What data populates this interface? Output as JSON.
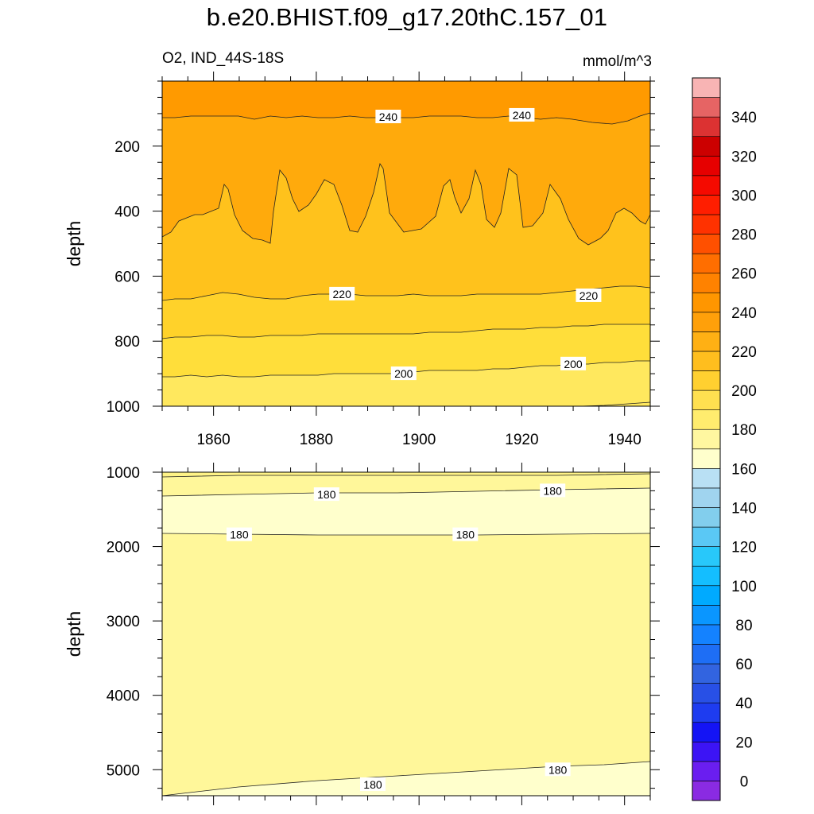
{
  "title": "b.e20.BHIST.f09_g17.20thC.157_01",
  "subtitle_left": "O2, IND_44S-18S",
  "subtitle_right": "mmol/m^3",
  "chart_data": [
    {
      "type": "heatmap",
      "panel": "upper",
      "variable": "O2",
      "ylabel": "depth",
      "xlim": [
        1850,
        1945
      ],
      "ylim": [
        1000,
        0
      ],
      "x_ticks": [
        1860,
        1880,
        1900,
        1920,
        1940
      ],
      "y_ticks": [
        200,
        400,
        600,
        800,
        1000
      ],
      "contour_labels": [
        {
          "text": "240",
          "x": 1894,
          "y": 110
        },
        {
          "text": "240",
          "x": 1920,
          "y": 105
        },
        {
          "text": "220",
          "x": 1885,
          "y": 655
        },
        {
          "text": "220",
          "x": 1933,
          "y": 660
        },
        {
          "text": "200",
          "x": 1897,
          "y": 900
        },
        {
          "text": "200",
          "x": 1930,
          "y": 870
        }
      ]
    },
    {
      "type": "heatmap",
      "panel": "lower",
      "variable": "O2",
      "ylabel": "depth",
      "xlim": [
        1850,
        1945
      ],
      "ylim": [
        5350,
        1000
      ],
      "y_ticks": [
        1000,
        2000,
        3000,
        4000,
        5000
      ],
      "contour_labels": [
        {
          "text": "180",
          "x": 1882,
          "y": 1300
        },
        {
          "text": "180",
          "x": 1926,
          "y": 1250
        },
        {
          "text": "180",
          "x": 1865,
          "y": 1840
        },
        {
          "text": "180",
          "x": 1909,
          "y": 1840
        },
        {
          "text": "180",
          "x": 1891,
          "y": 5200
        },
        {
          "text": "180",
          "x": 1927,
          "y": 5000
        }
      ]
    }
  ],
  "colorbar": {
    "labels": [
      "0",
      "20",
      "40",
      "60",
      "80",
      "100",
      "120",
      "140",
      "160",
      "180",
      "200",
      "220",
      "240",
      "260",
      "280",
      "300",
      "320",
      "340"
    ],
    "colors": [
      "#8a2be2",
      "#6a1ef0",
      "#3c14f5",
      "#1414f5",
      "#1e3cf0",
      "#2850e6",
      "#3264e0",
      "#1e6ef5",
      "#1482ff",
      "#0a96ff",
      "#00aaff",
      "#14beff",
      "#28c8fa",
      "#5ac8f5",
      "#82ceed",
      "#a0d4ef",
      "#b9e0f4",
      "#ffffcc",
      "#fff7a0",
      "#ffec6e",
      "#ffe050",
      "#ffd030",
      "#ffbe1e",
      "#ffb014",
      "#ffa00a",
      "#ff9600",
      "#ff8200",
      "#ff6e00",
      "#ff5000",
      "#ff3200",
      "#ff1e00",
      "#f50a00",
      "#e60000",
      "#cc0000",
      "#dc3232",
      "#e66464",
      "#f8b4b4"
    ]
  }
}
